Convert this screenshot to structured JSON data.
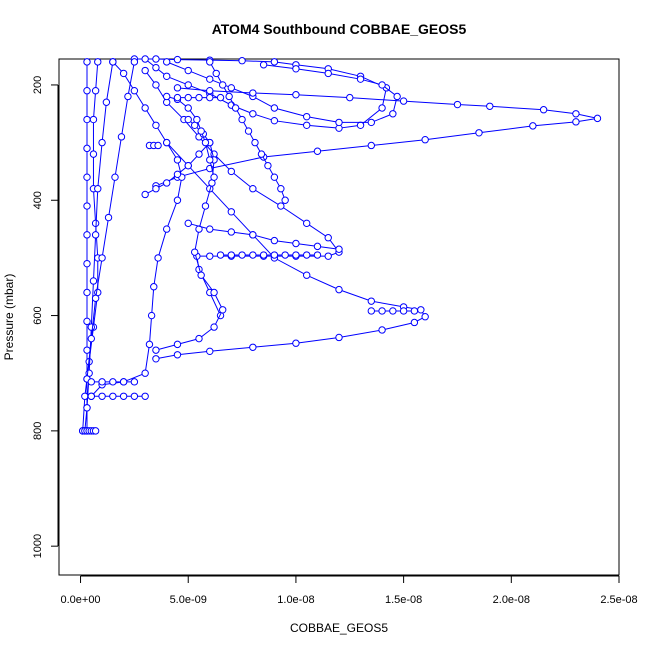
{
  "chart_data": {
    "type": "scatter",
    "title": "ATOM4 Southbound COBBAE_GEOS5",
    "xlabel": "COBBAE_GEOS5",
    "ylabel": "Pressure (mbar)",
    "xlim": [
      -1e-09,
      2.5e-08
    ],
    "ylim": [
      1050,
      155
    ],
    "y_reversed": true,
    "x_ticks": [
      0,
      5e-09,
      1e-08,
      1.5e-08,
      2e-08,
      2.5e-08
    ],
    "x_tick_labels": [
      "0.0e+00",
      "5.0e-09",
      "1.0e-08",
      "1.5e-08",
      "2.0e-08",
      "2.5e-08"
    ],
    "y_ticks": [
      200,
      400,
      600,
      800,
      1000
    ],
    "y_tick_labels": [
      "200",
      "400",
      "600",
      "800",
      "1000"
    ],
    "marker": "open-circle",
    "color": "#0000ff",
    "grid": false,
    "series": [
      {
        "x": [
          3e-09,
          3.5e-09,
          4e-09,
          5e-09,
          6e-09,
          7e-09,
          8e-09,
          9e-09,
          1.05e-08,
          1.2e-08,
          1.3e-08,
          1.4e-08,
          1.42e-08,
          1.3e-08,
          1.15e-08,
          1e-08,
          9e-09,
          7.5e-09,
          6e-09,
          4.5e-09,
          3.5e-09,
          2.5e-09
        ],
        "y": [
          155,
          170,
          185,
          200,
          215,
          235,
          250,
          262,
          270,
          275,
          270,
          240,
          205,
          185,
          172,
          165,
          160,
          158,
          157,
          156,
          155,
          155
        ]
      },
      {
        "x": [
          4e-09,
          5e-09,
          6e-09,
          7e-09,
          8e-09,
          9e-09,
          1.05e-08,
          1.2e-08,
          1.35e-08,
          1.45e-08,
          1.47e-08,
          1.4e-08,
          1.3e-08,
          1.15e-08,
          1e-08,
          8.5e-09
        ],
        "y": [
          160,
          175,
          190,
          205,
          220,
          240,
          255,
          265,
          265,
          250,
          220,
          200,
          190,
          180,
          172,
          165
        ]
      },
      {
        "x": [
          4.5e-09,
          6e-09,
          8e-09,
          1e-08,
          1.25e-08,
          1.5e-08,
          1.75e-08,
          1.9e-08,
          2.15e-08,
          2.3e-08,
          2.4e-08,
          2.3e-08,
          2.1e-08,
          1.85e-08,
          1.6e-08,
          1.35e-08,
          1.1e-08,
          8.5e-09,
          6e-09,
          4.5e-09,
          3.5e-09
        ],
        "y": [
          205,
          210,
          214,
          217,
          222,
          228,
          234,
          237,
          243,
          250,
          258,
          264,
          271,
          283,
          295,
          305,
          315,
          325,
          345,
          360,
          375
        ]
      },
      {
        "x": [
          3e-09,
          3.5e-09,
          4e-09,
          4.8e-09,
          5.5e-09,
          6.2e-09,
          7e-09,
          8e-09,
          9.3e-09,
          1.05e-08,
          1.15e-08,
          1.2e-08,
          1.15e-08,
          1e-08,
          8.5e-09,
          7e-09,
          6e-09,
          5.4e-09,
          5.5e-09,
          6e-09,
          6.5e-09
        ],
        "y": [
          175,
          200,
          230,
          260,
          290,
          320,
          350,
          380,
          410,
          440,
          465,
          490,
          497,
          497,
          497,
          497,
          497,
          497,
          520,
          560,
          600
        ]
      },
      {
        "x": [
          4e-09,
          5e-09,
          6e-09,
          7e-09,
          8e-09,
          9e-09,
          1.05e-08,
          1.2e-08,
          1.35e-08,
          1.5e-08,
          1.58e-08,
          1.6e-08,
          1.55e-08,
          1.4e-08,
          1.2e-08,
          1e-08,
          8e-09,
          6e-09,
          4.5e-09,
          3.5e-09
        ],
        "y": [
          300,
          340,
          380,
          420,
          460,
          500,
          530,
          555,
          575,
          585,
          590,
          602,
          612,
          625,
          638,
          648,
          655,
          662,
          668,
          675
        ]
      },
      {
        "x": [
          1.5e-09,
          2e-09,
          2.5e-09,
          3e-09,
          3.5e-09,
          4e-09,
          4.5e-09,
          4.7e-09,
          4.5e-09,
          4e-09,
          3.6e-09,
          3.4e-09,
          3.3e-09,
          3.2e-09,
          3e-09,
          2e-09,
          1e-09,
          5e-10
        ],
        "y": [
          160,
          180,
          210,
          240,
          270,
          300,
          330,
          360,
          400,
          450,
          500,
          550,
          600,
          650,
          700,
          715,
          720,
          740
        ]
      },
      {
        "x": [
          6e-09,
          6.3e-09,
          6.6e-09,
          6.9e-09,
          7.2e-09,
          7.5e-09,
          7.8e-09,
          8.1e-09,
          8.4e-09,
          8.7e-09,
          9e-09,
          9.3e-09,
          9.5e-09
        ],
        "y": [
          160,
          180,
          200,
          220,
          240,
          260,
          280,
          300,
          320,
          340,
          360,
          380,
          400
        ]
      },
      {
        "x": [
          5e-09,
          5.3e-09,
          5.7e-09,
          6e-09,
          6.2e-09,
          6.1e-09,
          5.8e-09,
          5.5e-09,
          5.3e-09,
          5.6e-09,
          6.2e-09,
          6.6e-09,
          6.2e-09,
          5.5e-09,
          4.5e-09,
          3.5e-09
        ],
        "y": [
          260,
          270,
          285,
          300,
          330,
          370,
          410,
          450,
          490,
          530,
          560,
          590,
          620,
          640,
          650,
          660
        ]
      },
      {
        "x": [
          3e-10,
          3e-10,
          3e-10,
          3e-10,
          3e-10,
          3e-10,
          3e-10,
          3e-10,
          3e-10,
          3e-10,
          3e-10,
          3e-10,
          3e-10,
          3e-10
        ],
        "y": [
          160,
          210,
          260,
          310,
          360,
          410,
          460,
          510,
          560,
          610,
          660,
          710,
          760,
          800
        ]
      },
      {
        "x": [
          8e-10,
          7e-10,
          6e-10,
          6e-10,
          6e-10,
          7e-10,
          8e-10,
          8e-10,
          6e-10,
          4e-10,
          2e-10,
          1e-10
        ],
        "y": [
          160,
          210,
          260,
          320,
          380,
          440,
          500,
          560,
          620,
          680,
          740,
          800
        ]
      },
      {
        "x": [
          1.5e-09,
          1.2e-09,
          1e-09,
          8e-10,
          7e-10,
          6e-10,
          5e-10,
          4e-10,
          3e-10,
          2e-10
        ],
        "y": [
          160,
          230,
          300,
          380,
          460,
          540,
          620,
          700,
          760,
          800
        ]
      },
      {
        "x": [
          2.5e-09,
          2.2e-09,
          1.9e-09,
          1.6e-09,
          1.3e-09,
          1e-09,
          7e-10,
          5e-10,
          3e-10
        ],
        "y": [
          160,
          220,
          290,
          360,
          430,
          500,
          570,
          640,
          710
        ]
      },
      {
        "x": [
          3e-09,
          3.5e-09,
          4e-09,
          4.5e-09,
          5e-09,
          5.5e-09,
          6e-09
        ],
        "y": [
          390,
          380,
          370,
          355,
          340,
          320,
          300
        ]
      },
      {
        "x": [
          5e-09,
          6e-09,
          7e-09,
          8e-09,
          9e-09,
          1e-08,
          1.1e-08,
          1.2e-08
        ],
        "y": [
          440,
          450,
          455,
          460,
          470,
          475,
          480,
          485
        ]
      },
      {
        "x": [
          4e-09,
          4.5e-09,
          5e-09,
          5.4e-09,
          5.6e-09,
          5.8e-09,
          6e-09,
          6.2e-09
        ],
        "y": [
          220,
          225,
          240,
          260,
          280,
          300,
          330,
          360
        ]
      },
      {
        "x": [
          4.5e-09,
          5e-09,
          5.5e-09,
          6e-09,
          6.5e-09
        ],
        "y": [
          222,
          222,
          222,
          222,
          222
        ]
      },
      {
        "x": [
          3.2e-09,
          3.4e-09,
          3.6e-09
        ],
        "y": [
          305,
          305,
          305
        ]
      },
      {
        "x": [
          5e-10,
          1e-09,
          1.5e-09,
          2e-09,
          2.5e-09
        ],
        "y": [
          715,
          715,
          715,
          715,
          715
        ]
      },
      {
        "x": [
          5e-10,
          1e-09,
          1.5e-09,
          2e-09,
          2.5e-09,
          3e-09
        ],
        "y": [
          740,
          740,
          740,
          740,
          740,
          740
        ]
      },
      {
        "x": [
          6.5e-09,
          7e-09,
          7.5e-09,
          8e-09,
          8.5e-09,
          9e-09,
          9.5e-09,
          1e-08,
          1.05e-08,
          1.1e-08
        ],
        "y": [
          495,
          495,
          495,
          495,
          495,
          495,
          495,
          495,
          495,
          495
        ]
      },
      {
        "x": [
          1.35e-08,
          1.4e-08,
          1.45e-08,
          1.5e-08,
          1.55e-08
        ],
        "y": [
          592,
          592,
          592,
          592,
          592
        ]
      },
      {
        "x": [
          1e-10,
          2e-10,
          3e-10,
          4e-10,
          5e-10,
          6e-10,
          7e-10
        ],
        "y": [
          800,
          800,
          800,
          800,
          800,
          800,
          800
        ]
      }
    ]
  }
}
